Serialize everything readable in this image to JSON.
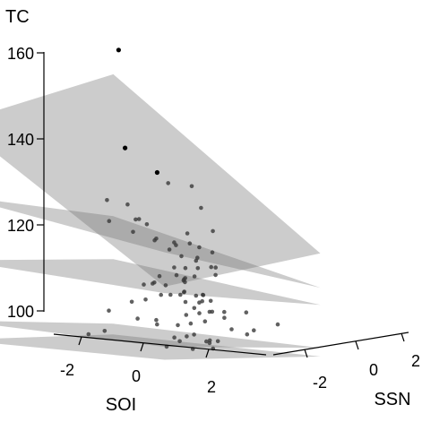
{
  "chart_data": {
    "type": "scatter",
    "subtype": "3d-scatter-with-regression-planes",
    "title": "",
    "zlabel": "TC",
    "xlabel": "SOI",
    "ylabel": "SSN",
    "z_ticks": [
      100,
      120,
      140,
      160
    ],
    "x_ticks": [
      -2,
      0,
      2
    ],
    "y_ticks": [
      -2,
      0,
      2
    ],
    "xlim": [
      -3,
      3
    ],
    "ylim": [
      -3,
      3
    ],
    "zlim": [
      100,
      160
    ],
    "grid": false,
    "legend": "none",
    "planes": [
      {
        "corners_z": [
          101.5,
          99,
          97,
          100
        ]
      },
      {
        "corners_z": [
          106,
          101.5,
          99,
          103
        ]
      },
      {
        "corners_z": [
          120,
          116.5,
          109,
          115.5
        ]
      },
      {
        "corners_z": [
          135,
          126.5,
          113,
          125
        ]
      },
      {
        "corners_z": [
          152,
          159.5,
          121,
          117
        ]
      }
    ],
    "points": [
      {
        "x": -0.27,
        "y": -0.42,
        "z": 168.7,
        "emphasis": true
      },
      {
        "x": 0.27,
        "y": -0.89,
        "z": 146.5,
        "emphasis": true
      },
      {
        "x": 0.62,
        "y": -0.12,
        "z": 140.5,
        "emphasis": true
      },
      {
        "x": 1.24,
        "y": -0.52,
        "z": 138.6,
        "emphasis": false
      },
      {
        "x": -0.47,
        "y": 0.19,
        "z": 132.3,
        "emphasis": false
      },
      {
        "x": -0.19,
        "y": 0.26,
        "z": 129.0,
        "emphasis": false
      },
      {
        "x": 0.39,
        "y": -0.21,
        "z": 128.4,
        "emphasis": false
      },
      {
        "x": 0.56,
        "y": 1.29,
        "z": 136.4,
        "emphasis": false
      },
      {
        "x": -2.04,
        "y": 1.48,
        "z": 131.7,
        "emphasis": false
      },
      {
        "x": 1.35,
        "y": 0.6,
        "z": 132.2,
        "emphasis": false
      },
      {
        "x": 0.26,
        "y": 0.83,
        "z": 121.8,
        "emphasis": false
      },
      {
        "x": 0.61,
        "y": 0.93,
        "z": 115.0,
        "emphasis": false
      },
      {
        "x": -0.13,
        "y": 1.77,
        "z": 110.5,
        "emphasis": false
      },
      {
        "x": 0.33,
        "y": 0.16,
        "z": 114.6,
        "emphasis": false
      },
      {
        "x": 0.76,
        "y": 0.35,
        "z": 118.2,
        "emphasis": false
      },
      {
        "x": -0.67,
        "y": 1.74,
        "z": 110.2,
        "emphasis": false
      },
      {
        "x": 0.74,
        "y": 1.34,
        "z": 109.4,
        "emphasis": false
      },
      {
        "x": 1.36,
        "y": -0.07,
        "z": 113.0,
        "emphasis": false
      },
      {
        "x": 0.88,
        "y": 0.05,
        "z": 112.1,
        "emphasis": false
      },
      {
        "x": 0.3,
        "y": 1.35,
        "z": 111.7,
        "emphasis": false
      },
      {
        "x": 0.67,
        "y": -0.63,
        "z": 111.3,
        "emphasis": false
      },
      {
        "x": 0.79,
        "y": 0.4,
        "z": 116.4,
        "emphasis": false
      },
      {
        "x": 0.42,
        "y": 1.71,
        "z": 117.0,
        "emphasis": false
      },
      {
        "x": 1.26,
        "y": 0.47,
        "z": 116.3,
        "emphasis": false
      },
      {
        "x": 0.1,
        "y": -0.18,
        "z": 106.3,
        "emphasis": false
      },
      {
        "x": 0.24,
        "y": 1.64,
        "z": 122.7,
        "emphasis": false
      },
      {
        "x": -0.24,
        "y": 0.51,
        "z": 113.6,
        "emphasis": false
      },
      {
        "x": 0.13,
        "y": 1.61,
        "z": 114.6,
        "emphasis": false
      },
      {
        "x": 1.01,
        "y": 1.14,
        "z": 111.4,
        "emphasis": false
      },
      {
        "x": -0.47,
        "y": 1.15,
        "z": 113.3,
        "emphasis": false
      },
      {
        "x": 1.05,
        "y": 0.4,
        "z": 110.3,
        "emphasis": false
      },
      {
        "x": 0.95,
        "y": 0.46,
        "z": 115.2,
        "emphasis": false
      },
      {
        "x": 1.15,
        "y": 0.91,
        "z": 110.2,
        "emphasis": false
      },
      {
        "x": 0.01,
        "y": 1.76,
        "z": 113.5,
        "emphasis": false
      },
      {
        "x": 1.33,
        "y": 1.52,
        "z": 107.4,
        "emphasis": false
      },
      {
        "x": 0.92,
        "y": 0.28,
        "z": 104.9,
        "emphasis": false
      },
      {
        "x": 0.79,
        "y": -0.35,
        "z": 105.4,
        "emphasis": false
      },
      {
        "x": 0.87,
        "y": 1.61,
        "z": 109.7,
        "emphasis": false
      },
      {
        "x": 1.39,
        "y": 0.15,
        "z": 105.6,
        "emphasis": false
      },
      {
        "x": 1.36,
        "y": 2.36,
        "z": 101.7,
        "emphasis": false
      },
      {
        "x": 1.91,
        "y": 1.89,
        "z": 103.2,
        "emphasis": false
      },
      {
        "x": 2.79,
        "y": 1.64,
        "z": 105.2,
        "emphasis": false
      },
      {
        "x": 0.71,
        "y": 0.9,
        "z": 101.8,
        "emphasis": false
      },
      {
        "x": 1.44,
        "y": 0.82,
        "z": 101.3,
        "emphasis": false
      },
      {
        "x": 1.2,
        "y": 0.53,
        "z": 102.7,
        "emphasis": false
      },
      {
        "x": -0.67,
        "y": -1.05,
        "z": 102.8,
        "emphasis": false
      },
      {
        "x": -0.55,
        "y": 1.8,
        "z": 98.2,
        "emphasis": false
      },
      {
        "x": 1.21,
        "y": 0.47,
        "z": 99.4,
        "emphasis": false
      },
      {
        "x": 1.05,
        "y": 0.18,
        "z": 101.3,
        "emphasis": false
      },
      {
        "x": 2.41,
        "y": -0.48,
        "z": 102.0,
        "emphasis": false
      },
      {
        "x": 1.5,
        "y": 1.05,
        "z": 101.0,
        "emphasis": false
      },
      {
        "x": 0.75,
        "y": 1.6,
        "z": 100.2,
        "emphasis": false
      },
      {
        "x": 1.72,
        "y": 0.57,
        "z": 99.7,
        "emphasis": false
      },
      {
        "x": 1.86,
        "y": 1.66,
        "z": 107.5,
        "emphasis": false
      },
      {
        "x": 1.68,
        "y": -1.2,
        "z": 115.5,
        "emphasis": false
      },
      {
        "x": 0.53,
        "y": 1.84,
        "z": 104.6,
        "emphasis": false
      },
      {
        "x": 0.21,
        "y": -0.55,
        "z": 110.5,
        "emphasis": false
      },
      {
        "x": -2.15,
        "y": 1.7,
        "z": 105.8,
        "emphasis": false
      },
      {
        "x": -0.95,
        "y": 1.93,
        "z": 104.1,
        "emphasis": false
      },
      {
        "x": -2.59,
        "y": 2.12,
        "z": 100.6,
        "emphasis": false
      },
      {
        "x": 1.0,
        "y": -0.72,
        "z": 125.3,
        "emphasis": false
      },
      {
        "x": -1.94,
        "y": 1.43,
        "z": 126.9,
        "emphasis": false
      },
      {
        "x": 1.4,
        "y": 0.99,
        "z": 126.6,
        "emphasis": false
      },
      {
        "x": 1.88,
        "y": -0.17,
        "z": 123.8,
        "emphasis": false
      },
      {
        "x": -0.01,
        "y": 1.44,
        "z": 122.3,
        "emphasis": false
      },
      {
        "x": 1.52,
        "y": 0.81,
        "z": 121.8,
        "emphasis": false
      },
      {
        "x": 1.07,
        "y": 0.83,
        "z": 120.3,
        "emphasis": false
      },
      {
        "x": 0.88,
        "y": 1.03,
        "z": 119.4,
        "emphasis": false
      },
      {
        "x": 1.66,
        "y": 0.58,
        "z": 118.6,
        "emphasis": false
      },
      {
        "x": 1.36,
        "y": 1.15,
        "z": 118.0,
        "emphasis": false
      },
      {
        "x": 1.68,
        "y": 0.72,
        "z": 116.7,
        "emphasis": false
      },
      {
        "x": 0.31,
        "y": 1.79,
        "z": 110.5,
        "emphasis": false
      },
      {
        "x": 0.4,
        "y": 1.6,
        "z": 107.8,
        "emphasis": false
      },
      {
        "x": 1.1,
        "y": 1.26,
        "z": 107.5,
        "emphasis": false
      },
      {
        "x": 0.98,
        "y": 1.52,
        "z": 107.3,
        "emphasis": false
      },
      {
        "x": 2.13,
        "y": -0.37,
        "z": 113.0,
        "emphasis": false
      },
      {
        "x": 1.73,
        "y": -0.43,
        "z": 127.1,
        "emphasis": false
      },
      {
        "x": 0.02,
        "y": -0.15,
        "z": 129.3,
        "emphasis": false
      },
      {
        "x": -0.32,
        "y": 0.2,
        "z": 126.0,
        "emphasis": false
      },
      {
        "x": 0.88,
        "y": 1.16,
        "z": 107.1,
        "emphasis": false
      },
      {
        "x": 1.59,
        "y": 1.18,
        "z": 106.4,
        "emphasis": false
      },
      {
        "x": 0.45,
        "y": 0.76,
        "z": 123.6,
        "emphasis": false
      },
      {
        "x": 0.06,
        "y": 0.59,
        "z": 124.4,
        "emphasis": false
      },
      {
        "x": -0.18,
        "y": 2.06,
        "z": 105.6,
        "emphasis": false
      },
      {
        "x": 1.55,
        "y": 1.51,
        "z": 103.5,
        "emphasis": false
      },
      {
        "x": -0.87,
        "y": 2.52,
        "z": 99.7,
        "emphasis": false
      },
      {
        "x": 0.33,
        "y": 1.35,
        "z": 117.2,
        "emphasis": false
      },
      {
        "x": 1.25,
        "y": -0.02,
        "z": 121.3,
        "emphasis": false
      },
      {
        "x": -0.75,
        "y": 1.79,
        "z": 114.5,
        "emphasis": false
      }
    ]
  }
}
